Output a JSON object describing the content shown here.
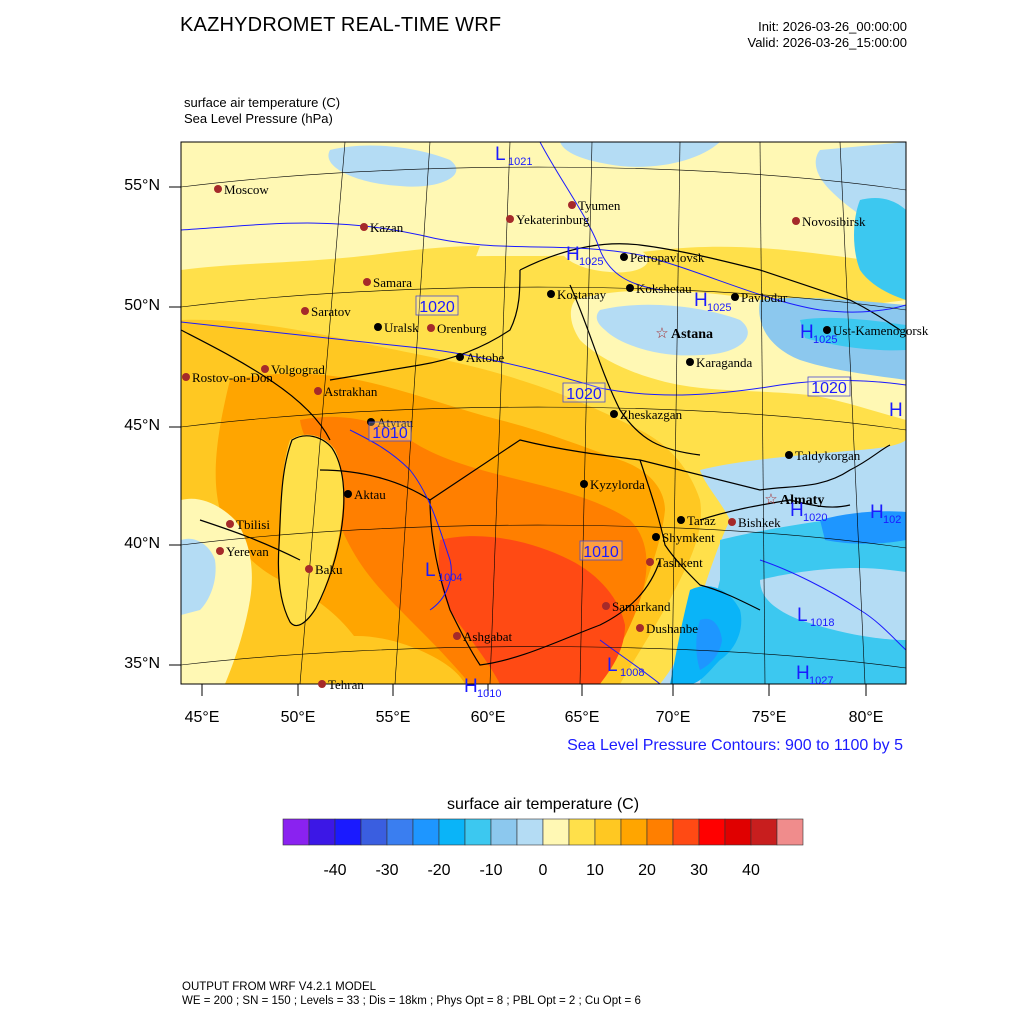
{
  "header": {
    "title": "KAZHYDROMET REAL-TIME WRF",
    "init": "Init: 2026-03-26_00:00:00",
    "valid": "Valid: 2026-03-26_15:00:00"
  },
  "fields": {
    "primary": "surface air temperature   (C)",
    "secondary": "Sea Level Pressure   (hPa)"
  },
  "axes": {
    "lat_labels": [
      "55°N",
      "50°N",
      "45°N",
      "40°N",
      "35°N"
    ],
    "lon_labels": [
      "45°E",
      "50°E",
      "55°E",
      "60°E",
      "65°E",
      "70°E",
      "75°E",
      "80°E"
    ]
  },
  "slp_note": "Sea Level Pressure Contours: 900 to 1100 by 5",
  "colorbar": {
    "title": "surface air temperature  (C)",
    "labels": [
      "-40",
      "-30",
      "-20",
      "-10",
      "0",
      "10",
      "20",
      "30",
      "40"
    ],
    "colors": [
      "#8a22f0",
      "#3c17e6",
      "#1a1aff",
      "#3a5ee0",
      "#3a7ef0",
      "#1e96ff",
      "#0ab4f8",
      "#3cc8f0",
      "#8cc8ee",
      "#b4dcf4",
      "#fff8b4",
      "#ffe04a",
      "#ffc822",
      "#ffa500",
      "#ff7f00",
      "#ff4a14",
      "#ff0000",
      "#e00000",
      "#c81e1e",
      "#f08c8c"
    ]
  },
  "cities_red": [
    {
      "name": "Moscow"
    },
    {
      "name": "Kazan"
    },
    {
      "name": "Tyumen"
    },
    {
      "name": "Yekaterinburg"
    },
    {
      "name": "Novosibirsk"
    },
    {
      "name": "Samara"
    },
    {
      "name": "Saratov"
    },
    {
      "name": "Orenburg"
    },
    {
      "name": "Volgograd"
    },
    {
      "name": "Rostov-on-Don"
    },
    {
      "name": "Astrakhan"
    },
    {
      "name": "Tbilisi"
    },
    {
      "name": "Yerevan"
    },
    {
      "name": "Baku"
    },
    {
      "name": "Ashgabat"
    },
    {
      "name": "Tehran"
    },
    {
      "name": "Samarkand"
    },
    {
      "name": "Dushanbe"
    },
    {
      "name": "Tashkent"
    },
    {
      "name": "Bishkek"
    }
  ],
  "cities_black": [
    {
      "name": "Petropavlovsk"
    },
    {
      "name": "Kostanay"
    },
    {
      "name": "Kokshetau"
    },
    {
      "name": "Pavlodar"
    },
    {
      "name": "Uralsk"
    },
    {
      "name": "Aktobe"
    },
    {
      "name": "Ust-Kamenogorsk"
    },
    {
      "name": "Karaganda"
    },
    {
      "name": "Atyrau"
    },
    {
      "name": "Zheskazgan"
    },
    {
      "name": "Taldykorgan"
    },
    {
      "name": "Kyzylorda"
    },
    {
      "name": "Aktau"
    },
    {
      "name": "Taraz"
    },
    {
      "name": "Shymkent"
    }
  ],
  "capitals": [
    {
      "name": "Astana"
    },
    {
      "name": "Almaty"
    }
  ],
  "pressure_labels": [
    {
      "text": "L",
      "value": "1021"
    },
    {
      "text": "H",
      "value": "1025"
    },
    {
      "text": "H",
      "value": "1025"
    },
    {
      "text": "H",
      "value": "1025"
    },
    {
      "text": "H",
      "value": ""
    },
    {
      "text": "H",
      "value": "102"
    },
    {
      "text": "L",
      "value": "1004"
    },
    {
      "text": "L",
      "value": "1018"
    },
    {
      "text": "L",
      "value": "1008"
    },
    {
      "text": "H",
      "value": "1027"
    },
    {
      "text": "H",
      "value": "1010"
    },
    {
      "text": "H",
      "value": "1020"
    }
  ],
  "contour_boxes": [
    "1020",
    "1020",
    "1020",
    "1010",
    "1010"
  ],
  "footer": {
    "line1": "OUTPUT FROM WRF V4.2.1 MODEL",
    "line2": "WE = 200 ; SN = 150 ; Levels = 33 ; Dis = 18km ; Phys Opt = 8 ; PBL Opt = 2 ; Cu Opt = 6"
  }
}
